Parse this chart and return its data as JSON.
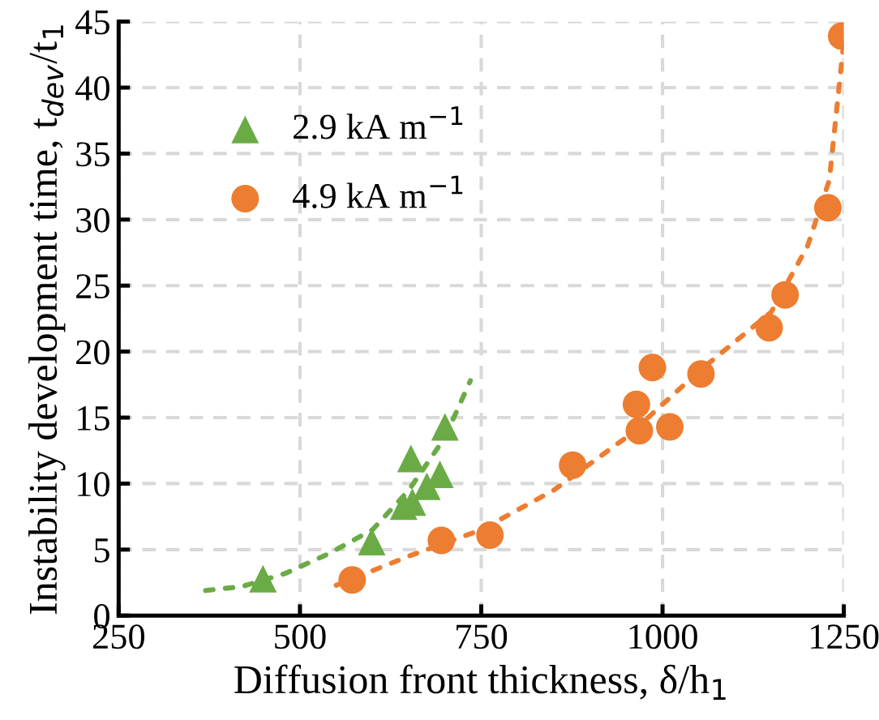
{
  "chart_data": {
    "type": "scatter",
    "xlabel": "Diffusion front thickness, δ/h$_{1}$",
    "ylabel": "Instability development time, t$_{dev}$/t$_{1}$",
    "xlim": [
      250,
      1250
    ],
    "xticks": [
      250,
      500,
      750,
      1000,
      1250
    ],
    "ylim": [
      0,
      45
    ],
    "yticks": [
      0,
      5,
      10,
      15,
      20,
      25,
      30,
      35,
      40,
      45
    ],
    "grid": true,
    "legend": "top left",
    "series": [
      {
        "name": "2.9 kA m$^{−1}$",
        "color": "#6aab46",
        "marker": "triangle",
        "x": [
          449,
          599,
          643,
          655,
          653,
          675,
          693,
          700
        ],
        "values": [
          2.8,
          5.6,
          8.3,
          8.6,
          11.9,
          9.8,
          10.7,
          14.3
        ]
      },
      {
        "name": "4.9 kA m$^{−1}$",
        "color": "#ed7d31",
        "marker": "circle",
        "x": [
          572,
          695,
          762,
          876,
          964,
          968,
          986,
          1010,
          1053,
          1147,
          1169,
          1228,
          1247
        ],
        "values": [
          2.7,
          5.7,
          6.1,
          11.4,
          16.0,
          14.0,
          18.8,
          14.3,
          18.3,
          21.8,
          24.3,
          30.9,
          43.9
        ]
      },
      {
        "type": "line",
        "color": "#6aab46",
        "line_style": "dotted",
        "marker": "none",
        "x": [
          370,
          420,
          480,
          540,
          600,
          650,
          700,
          735
        ],
        "values": [
          1.9,
          2.2,
          3.2,
          4.7,
          6.5,
          9.5,
          13.5,
          17.8
        ]
      },
      {
        "type": "line",
        "color": "#ed7d31",
        "line_style": "dotted",
        "marker": "none",
        "x": [
          550,
          650,
          750,
          850,
          950,
          1050,
          1150,
          1200,
          1230,
          1250
        ],
        "values": [
          2.3,
          4.5,
          6.5,
          9.5,
          13.5,
          18.5,
          23,
          28,
          33,
          43.5
        ]
      }
    ]
  }
}
